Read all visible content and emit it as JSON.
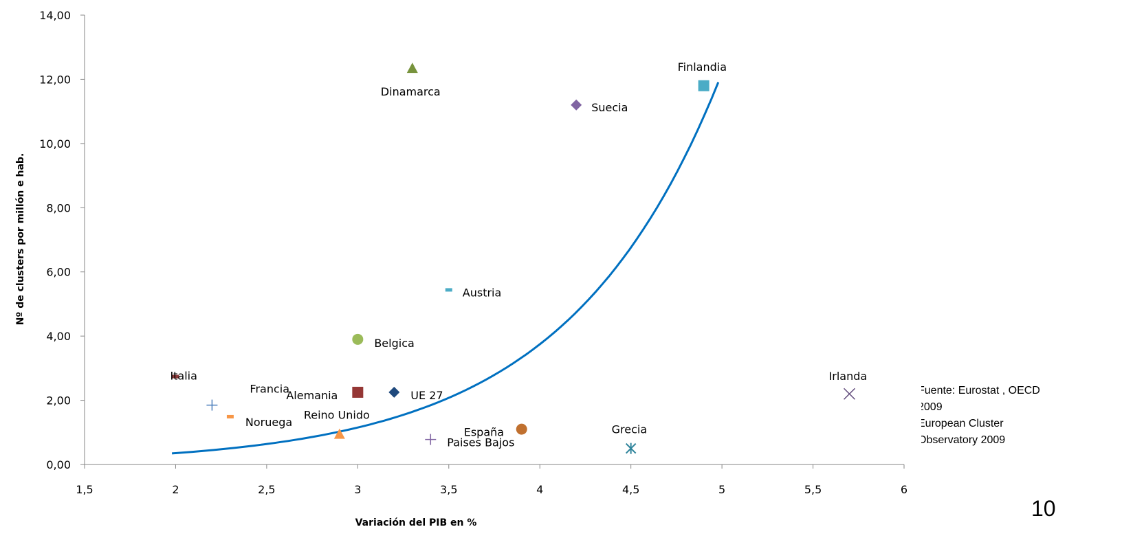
{
  "chart_data": {
    "type": "scatter",
    "xlabel": "Variación del PIB en %",
    "ylabel": "Nº de clusters por millón e hab.",
    "xlim": [
      1.5,
      6
    ],
    "ylim": [
      0,
      14
    ],
    "x_ticks": [
      "1,5",
      "2",
      "2,5",
      "3",
      "3,5",
      "4",
      "4,5",
      "5",
      "5,5",
      "6"
    ],
    "y_ticks": [
      "0,00",
      "2,00",
      "4,00",
      "6,00",
      "8,00",
      "10,00",
      "12,00",
      "14,00"
    ],
    "grid": false,
    "points": [
      {
        "label": "Italia",
        "x": 2.0,
        "y": 2.75,
        "marker": "dash",
        "color": "#8b3a3a"
      },
      {
        "label": "Francia",
        "x": 2.2,
        "y": 1.85,
        "marker": "plus",
        "color": "#4a7ebb"
      },
      {
        "label": "Noruega",
        "x": 2.3,
        "y": 1.5,
        "marker": "dash",
        "color": "#f79646"
      },
      {
        "label": "Reino Unido",
        "x": 2.9,
        "y": 0.95,
        "marker": "triangle",
        "color": "#f79646"
      },
      {
        "label": "Alemania",
        "x": 3.0,
        "y": 2.25,
        "marker": "square",
        "color": "#953735"
      },
      {
        "label": "Belgica",
        "x": 3.0,
        "y": 3.9,
        "marker": "circle",
        "color": "#9bbb59"
      },
      {
        "label": "UE 27",
        "x": 3.2,
        "y": 2.25,
        "marker": "diamond",
        "color": "#1f497d"
      },
      {
        "label": "Dinamarca",
        "x": 3.3,
        "y": 12.35,
        "marker": "triangle",
        "color": "#77933c"
      },
      {
        "label": "Paises Bajos",
        "x": 3.4,
        "y": 0.78,
        "marker": "plus",
        "color": "#8064a2"
      },
      {
        "label": "Austria",
        "x": 3.5,
        "y": 5.45,
        "marker": "dash",
        "color": "#4bacc6"
      },
      {
        "label": "España",
        "x": 3.9,
        "y": 1.1,
        "marker": "circle",
        "color": "#c0702f"
      },
      {
        "label": "Suecia",
        "x": 4.2,
        "y": 11.2,
        "marker": "diamond",
        "color": "#8064a2"
      },
      {
        "label": "Grecia",
        "x": 4.5,
        "y": 0.5,
        "marker": "star",
        "color": "#31859c"
      },
      {
        "label": "Finlandia",
        "x": 4.9,
        "y": 11.8,
        "marker": "square",
        "color": "#4bacc6"
      },
      {
        "label": "Irlanda",
        "x": 5.7,
        "y": 2.2,
        "marker": "cross",
        "color": "#604a7b"
      }
    ],
    "trendline": {
      "type": "exponential",
      "color": "#0070c0",
      "x_range": [
        1.98,
        4.98
      ],
      "a": 0.0334,
      "b": 1.18
    }
  },
  "annotations": {
    "source_lines": [
      "Fuente: Eurostat , OECD",
      "2009",
      "European Cluster",
      "Observatory 2009"
    ],
    "page_number": "10"
  }
}
